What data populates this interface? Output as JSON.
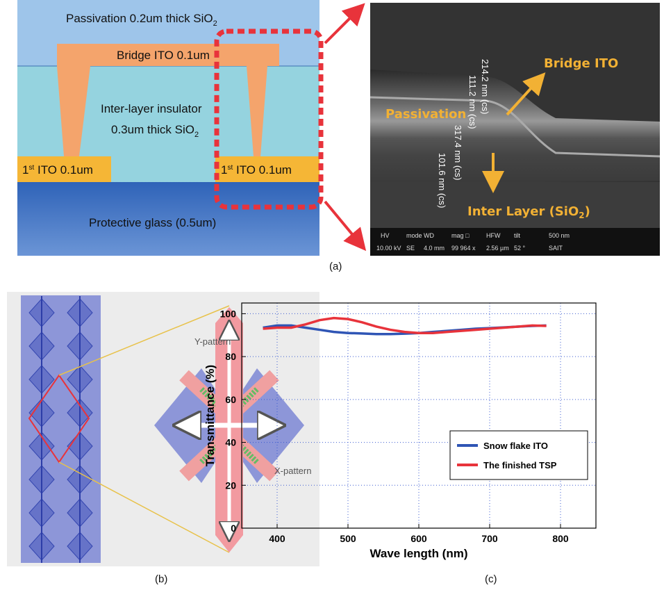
{
  "panel_a": {
    "diagram": {
      "passivation": [
        "Passivation 0.2um thick SiO",
        "2"
      ],
      "bridge": "Bridge ITO 0.1um",
      "insulator_1": "Inter-layer insulator",
      "insulator_2": [
        "0.3um thick SiO",
        "2"
      ],
      "ito_left": [
        "1",
        "st",
        " ITO 0.1um"
      ],
      "ito_right": [
        "1",
        "st",
        " ITO 0.1um"
      ],
      "glass": "Protective glass (0.5um)"
    },
    "sem": {
      "bridge": "Bridge ITO",
      "passivation": "Passivation",
      "inter_layer": [
        "Inter Layer (SiO",
        "2",
        ")"
      ],
      "measurements": [
        "214.2 nm (cs)",
        "111.2 nm (cs)",
        "317.4 nm (cs)",
        "101.6 nm (cs)"
      ],
      "info_header": [
        "HV",
        "mode",
        "WD",
        "mag □",
        "HFW",
        "tilt",
        "500 nm"
      ],
      "info_values": [
        "10.00 kV",
        "SE",
        "4.0 mm",
        "99 964 x",
        "2.56 µm",
        "52 °",
        "SAIT"
      ]
    },
    "caption": "(a)"
  },
  "panel_b": {
    "y_pattern": "Y-pattern",
    "x_pattern": "X-pattern",
    "caption": "(b)"
  },
  "chart_data": {
    "type": "line",
    "x_label": "Wave length (nm)",
    "y_label": "Transmittance (%)",
    "x": [
      380,
      400,
      420,
      440,
      460,
      480,
      500,
      520,
      540,
      560,
      580,
      600,
      620,
      640,
      660,
      680,
      700,
      720,
      740,
      760,
      780
    ],
    "series": [
      {
        "name": "Snow flake ITO",
        "color": "#2f55b5",
        "values": [
          93.5,
          94.5,
          94.5,
          93.5,
          92.5,
          91.5,
          91,
          90.8,
          90.5,
          90.5,
          90.7,
          91,
          91.5,
          92,
          92.5,
          93,
          93.3,
          93.6,
          94,
          94.3,
          94.5
        ]
      },
      {
        "name": "The finished TSP",
        "color": "#e8333b",
        "values": [
          93,
          93.5,
          93.5,
          95,
          97,
          98,
          97.5,
          96,
          94,
          92.5,
          91.5,
          91,
          91,
          91.5,
          92,
          92.5,
          93,
          93.5,
          94,
          94.5,
          94.3
        ]
      }
    ],
    "xlim": [
      350,
      850
    ],
    "ylim": [
      0,
      105
    ],
    "xticks": [
      400,
      500,
      600,
      700,
      800
    ],
    "yticks": [
      0,
      20,
      40,
      60,
      80,
      100
    ],
    "grid": true,
    "legend": "lower right",
    "caption": "(c)"
  }
}
